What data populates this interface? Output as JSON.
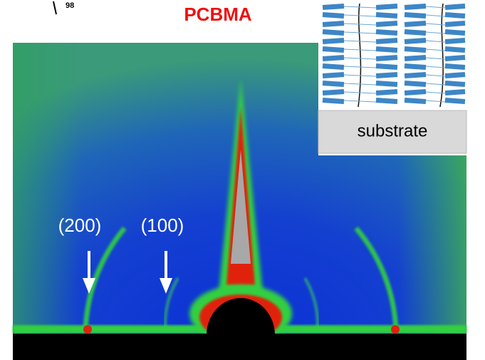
{
  "figure": {
    "title": "PCBMA",
    "corner_label": "98",
    "peaks": [
      "(200)",
      "(100)"
    ],
    "inset": {
      "label": "substrate"
    }
  }
}
